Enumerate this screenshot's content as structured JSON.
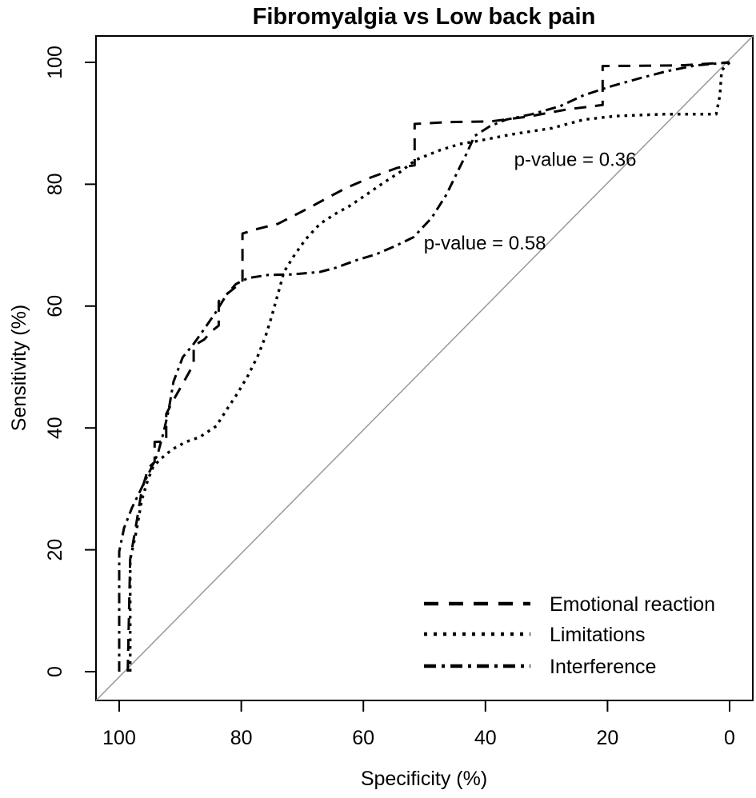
{
  "chart_data": {
    "type": "line",
    "title": "Fibromyalgia vs Low back pain",
    "xlabel": "Specificity (%)",
    "ylabel": "Sensitivity (%)",
    "x_axis": {
      "ticks": [
        100,
        80,
        60,
        40,
        20,
        0
      ],
      "range": [
        100,
        0
      ],
      "reversed": true
    },
    "y_axis": {
      "ticks": [
        0,
        20,
        40,
        60,
        80,
        100
      ],
      "range": [
        0,
        100
      ]
    },
    "grid": false,
    "reference_line": {
      "description": "diagonal chance line",
      "from": [
        100,
        0
      ],
      "to": [
        0,
        100
      ],
      "color": "#999999"
    },
    "colors": {
      "curves": "#000000",
      "reference": "#999999"
    },
    "legend": {
      "position": "bottom-right",
      "items": [
        {
          "label": "Emotional reaction",
          "line_style": "dashed"
        },
        {
          "label": "Limitations",
          "line_style": "dotted"
        },
        {
          "label": "Interference",
          "line_style": "dashdot"
        }
      ]
    },
    "annotations": [
      {
        "text": "p-value = 0.36",
        "spec": 35.3,
        "sens": 83.0
      },
      {
        "text": "p-value = 0.58",
        "spec": 50.1,
        "sens": 69.3
      }
    ],
    "series": [
      {
        "name": "Emotional reaction",
        "line_style": "dashed",
        "points_spec_sens": [
          [
            98.6,
            0
          ],
          [
            98.2,
            18.4
          ],
          [
            97.2,
            24.3
          ],
          [
            96.3,
            29.8
          ],
          [
            95.2,
            33.5
          ],
          [
            94.2,
            34.4
          ],
          [
            94.2,
            37.7
          ],
          [
            92.3,
            37.8
          ],
          [
            92.3,
            42.3
          ],
          [
            91.1,
            44.6
          ],
          [
            89.4,
            47.6
          ],
          [
            87.8,
            50.5
          ],
          [
            87.8,
            53.5
          ],
          [
            86.1,
            54.5
          ],
          [
            84.7,
            56.0
          ],
          [
            83.7,
            56.8
          ],
          [
            83.7,
            60.8
          ],
          [
            82.2,
            62.1
          ],
          [
            80.6,
            63.4
          ],
          [
            79.8,
            63.9
          ],
          [
            79.8,
            71.9
          ],
          [
            77.6,
            72.6
          ],
          [
            74.0,
            73.5
          ],
          [
            69.3,
            75.9
          ],
          [
            64.9,
            78.3
          ],
          [
            62.8,
            79.4
          ],
          [
            58.8,
            81.1
          ],
          [
            54.4,
            82.7
          ],
          [
            51.6,
            83.1
          ],
          [
            51.6,
            89.9
          ],
          [
            46.1,
            90.2
          ],
          [
            39.2,
            90.3
          ],
          [
            33.0,
            91.1
          ],
          [
            26.5,
            92.3
          ],
          [
            20.8,
            93.0
          ],
          [
            20.8,
            99.4
          ],
          [
            8.1,
            99.5
          ],
          [
            0,
            100
          ]
        ]
      },
      {
        "name": "Limitations",
        "line_style": "dotted",
        "points_spec_sens": [
          [
            98.2,
            0
          ],
          [
            98.2,
            18.4
          ],
          [
            97.2,
            23.0
          ],
          [
            96.3,
            28.2
          ],
          [
            95.3,
            31.5
          ],
          [
            94.4,
            33.7
          ],
          [
            93.1,
            35.0
          ],
          [
            91.3,
            36.5
          ],
          [
            89.1,
            37.7
          ],
          [
            86.8,
            38.5
          ],
          [
            84.1,
            40.3
          ],
          [
            82.2,
            43.3
          ],
          [
            80.6,
            45.7
          ],
          [
            78.9,
            48.6
          ],
          [
            77.3,
            51.8
          ],
          [
            76.0,
            55.1
          ],
          [
            75.0,
            58.4
          ],
          [
            73.9,
            62.3
          ],
          [
            73.0,
            65.6
          ],
          [
            71.4,
            68.2
          ],
          [
            69.5,
            70.9
          ],
          [
            67.1,
            73.5
          ],
          [
            64.5,
            75.2
          ],
          [
            62.3,
            76.4
          ],
          [
            59.2,
            78.5
          ],
          [
            56.6,
            80.3
          ],
          [
            54.0,
            82.0
          ],
          [
            51.4,
            84.0
          ],
          [
            47.4,
            85.6
          ],
          [
            44.2,
            86.6
          ],
          [
            41.8,
            87.0
          ],
          [
            35.6,
            88.2
          ],
          [
            29.1,
            89.2
          ],
          [
            23.9,
            90.6
          ],
          [
            18.6,
            91.2
          ],
          [
            10.7,
            91.5
          ],
          [
            2.2,
            91.5
          ],
          [
            1.6,
            94.5
          ],
          [
            1.3,
            98.7
          ],
          [
            0,
            100
          ]
        ]
      },
      {
        "name": "Interference",
        "line_style": "dashdot",
        "points_spec_sens": [
          [
            100,
            0
          ],
          [
            100,
            19.7
          ],
          [
            99.2,
            23.6
          ],
          [
            97.9,
            26.9
          ],
          [
            96.3,
            30.2
          ],
          [
            94.9,
            33.1
          ],
          [
            93.7,
            35.7
          ],
          [
            92.7,
            39.4
          ],
          [
            91.9,
            42.9
          ],
          [
            91.1,
            47.6
          ],
          [
            89.6,
            51.6
          ],
          [
            87.8,
            53.8
          ],
          [
            86.1,
            56.2
          ],
          [
            84.1,
            59.1
          ],
          [
            82.4,
            61.9
          ],
          [
            80.9,
            63.6
          ],
          [
            78.9,
            64.6
          ],
          [
            75.6,
            65.1
          ],
          [
            71.7,
            65.2
          ],
          [
            67.1,
            65.6
          ],
          [
            64.5,
            66.3
          ],
          [
            61.2,
            67.5
          ],
          [
            57.9,
            68.5
          ],
          [
            54.7,
            69.9
          ],
          [
            51.8,
            71.3
          ],
          [
            48.8,
            74.5
          ],
          [
            46.4,
            78.3
          ],
          [
            44.6,
            82.0
          ],
          [
            43.1,
            85.0
          ],
          [
            41.8,
            87.9
          ],
          [
            39.3,
            89.5
          ],
          [
            36.6,
            90.6
          ],
          [
            32.4,
            91.5
          ],
          [
            27.8,
            92.8
          ],
          [
            23.9,
            94.6
          ],
          [
            19.3,
            96.1
          ],
          [
            14.7,
            97.4
          ],
          [
            10.1,
            98.6
          ],
          [
            5.5,
            99.5
          ],
          [
            0,
            100
          ]
        ]
      }
    ]
  }
}
